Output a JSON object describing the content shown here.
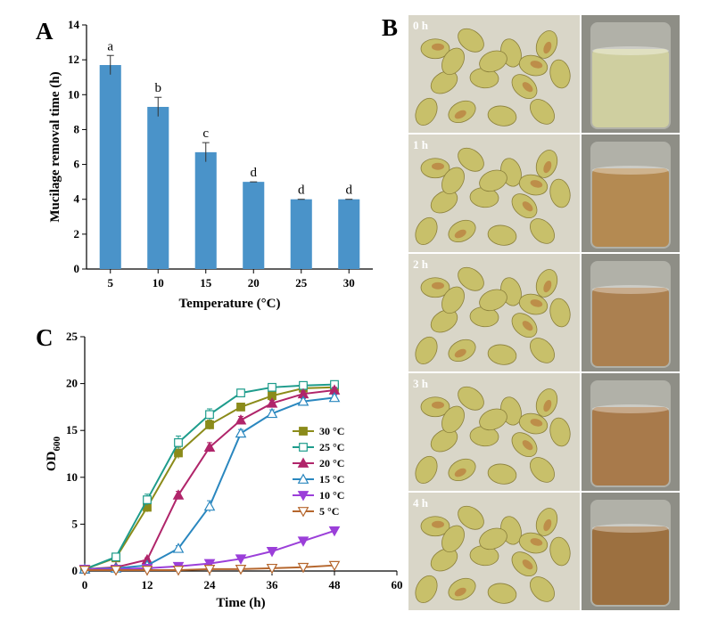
{
  "panels": {
    "A": "A",
    "B": "B",
    "C": "C"
  },
  "chart_data": [
    {
      "panel": "A",
      "type": "bar",
      "xlabel": "Temperature (°C)",
      "ylabel": "Mucilage removal time (h)",
      "categories": [
        "5",
        "10",
        "15",
        "20",
        "25",
        "30"
      ],
      "values": [
        11.7,
        9.3,
        6.7,
        5.0,
        4.0,
        4.0
      ],
      "errors": [
        0.55,
        0.55,
        0.55,
        0.0,
        0.0,
        0.0
      ],
      "significance": [
        "a",
        "b",
        "c",
        "d",
        "d",
        "d"
      ],
      "ylim": [
        0,
        14
      ],
      "yticks": [
        "0",
        "2",
        "4",
        "6",
        "8",
        "10",
        "12",
        "14"
      ],
      "bar_color": "#4a93c9",
      "grid": false
    },
    {
      "panel": "C",
      "type": "line",
      "xlabel": "Time (h)",
      "ylabel_main": "OD",
      "ylabel_sub": "600",
      "xlim": [
        0,
        60
      ],
      "ylim": [
        0,
        25
      ],
      "xticks": [
        "0",
        "12",
        "24",
        "36",
        "48",
        "60"
      ],
      "yticks": [
        "0",
        "5",
        "10",
        "15",
        "20",
        "25"
      ],
      "legend_position": "center-right",
      "grid": false,
      "series": [
        {
          "name": "30 °C",
          "color": "#8b8b1a",
          "marker": "square-filled",
          "x": [
            0,
            6,
            12,
            18,
            24,
            30,
            36,
            42,
            48
          ],
          "y": [
            0.2,
            1.4,
            6.8,
            12.6,
            15.6,
            17.5,
            18.7,
            19.5,
            19.6
          ],
          "err": [
            0.1,
            0.2,
            0.5,
            0.6,
            0.5,
            0.4,
            0.3,
            0.3,
            0.3
          ]
        },
        {
          "name": "25 °C",
          "color": "#1e9c8c",
          "marker": "square-open",
          "x": [
            0,
            6,
            12,
            18,
            24,
            30,
            36,
            42,
            48
          ],
          "y": [
            0.2,
            1.5,
            7.6,
            13.7,
            16.7,
            19.0,
            19.6,
            19.8,
            19.9
          ],
          "err": [
            0.1,
            0.2,
            0.6,
            0.7,
            0.6,
            0.4,
            0.3,
            0.3,
            0.3
          ]
        },
        {
          "name": "20 °C",
          "color": "#b0256a",
          "marker": "triangle-up-filled",
          "x": [
            0,
            6,
            12,
            18,
            24,
            30,
            36,
            42,
            48
          ],
          "y": [
            0.2,
            0.4,
            1.2,
            8.1,
            13.2,
            16.1,
            17.9,
            18.9,
            19.3
          ],
          "err": [
            0.1,
            0.1,
            0.2,
            0.4,
            0.5,
            0.4,
            0.3,
            0.3,
            0.3
          ]
        },
        {
          "name": "15 °C",
          "color": "#2a87bf",
          "marker": "triangle-up-open",
          "x": [
            0,
            6,
            12,
            18,
            24,
            30,
            36,
            42,
            48
          ],
          "y": [
            0.2,
            0.3,
            0.6,
            2.4,
            6.9,
            14.7,
            16.8,
            18.1,
            18.5
          ],
          "err": [
            0.1,
            0.1,
            0.1,
            0.3,
            0.6,
            0.4,
            0.4,
            0.3,
            0.3
          ]
        },
        {
          "name": "10 °C",
          "color": "#9b3fd9",
          "marker": "triangle-down-filled",
          "x": [
            0,
            6,
            12,
            18,
            24,
            30,
            36,
            42,
            48
          ],
          "y": [
            0.2,
            0.2,
            0.3,
            0.5,
            0.8,
            1.3,
            2.1,
            3.2,
            4.3
          ],
          "err": [
            0.05,
            0.05,
            0.05,
            0.1,
            0.1,
            0.1,
            0.2,
            0.2,
            0.2
          ]
        },
        {
          "name": "5 °C",
          "color": "#b5662d",
          "marker": "triangle-down-open",
          "x": [
            0,
            6,
            12,
            18,
            24,
            30,
            36,
            42,
            48
          ],
          "y": [
            0.1,
            0.1,
            0.1,
            0.1,
            0.2,
            0.2,
            0.3,
            0.4,
            0.6
          ],
          "err": [
            0.05,
            0.05,
            0.05,
            0.05,
            0.05,
            0.05,
            0.05,
            0.05,
            0.1
          ]
        }
      ]
    }
  ],
  "photos": {
    "labels": [
      "0 h",
      "1 h",
      "2 h",
      "3 h",
      "4 h"
    ],
    "liquid_colors": [
      "#cfcfa0",
      "#b48a52",
      "#ab8050",
      "#a87a4b",
      "#9c7040"
    ],
    "bean_color": "#c8c06a",
    "bean_accent": "#b5642e"
  }
}
